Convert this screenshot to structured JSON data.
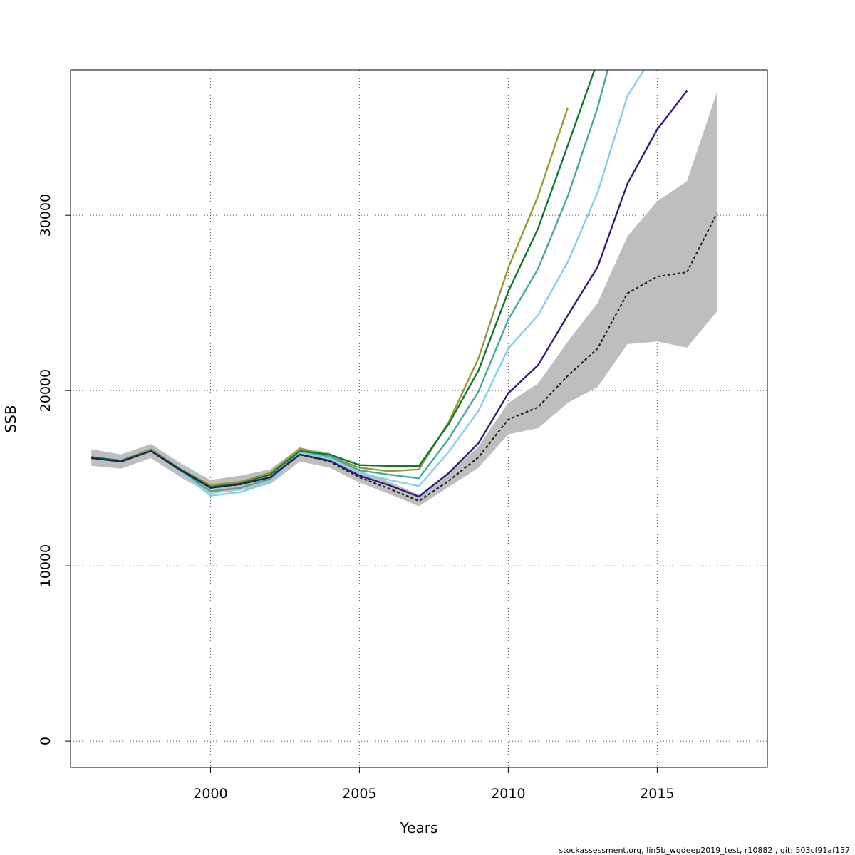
{
  "chart_data": {
    "type": "line",
    "title": "",
    "xlabel": "Years",
    "ylabel": "SSB",
    "xlim": [
      1995.3,
      2018.7
    ],
    "ylim": [
      -1500,
      38300
    ],
    "x_ticks": [
      2000,
      2005,
      2010,
      2015
    ],
    "y_ticks": [
      0,
      10000,
      20000,
      30000
    ],
    "x_tick_labels": [
      "2000",
      "2005",
      "2010",
      "2015"
    ],
    "y_tick_labels": [
      "0",
      "10000",
      "20000",
      "30000"
    ],
    "grid": true,
    "confidence_band": {
      "x": [
        1996,
        1997,
        1998,
        1999,
        2000,
        2001,
        2002,
        2003,
        2004,
        2005,
        2006,
        2007,
        2008,
        2009,
        2010,
        2011,
        2012,
        2013,
        2014,
        2015,
        2016,
        2017
      ],
      "lower": [
        15700,
        15550,
        16150,
        15050,
        14100,
        14300,
        14650,
        15950,
        15600,
        14750,
        14100,
        13400,
        14500,
        15600,
        17500,
        17850,
        19300,
        20200,
        22650,
        22800,
        22450,
        24500
      ],
      "upper": [
        16650,
        16350,
        16950,
        15850,
        14900,
        15150,
        15500,
        16750,
        16450,
        15450,
        14800,
        14050,
        15300,
        16800,
        19300,
        20400,
        22800,
        25000,
        28800,
        30800,
        31950,
        37000
      ]
    },
    "series": [
      {
        "color": "#222222",
        "dashed": true,
        "x": [
          1996,
          1997,
          1998,
          1999,
          2000,
          2001,
          2002,
          2003,
          2004,
          2005,
          2006,
          2007,
          2008,
          2009,
          2010,
          2011,
          2012,
          2013,
          2014,
          2015,
          2016,
          2017
        ],
        "values": [
          16150,
          15950,
          16550,
          15450,
          14450,
          14650,
          15050,
          16350,
          15950,
          15050,
          14400,
          13700,
          14850,
          16200,
          18350,
          19050,
          20850,
          22400,
          25550,
          26500,
          26750,
          30100
        ]
      },
      {
        "color": "#2d1f82",
        "dashed": false,
        "x": [
          1996,
          1997,
          1998,
          1999,
          2000,
          2001,
          2002,
          2003,
          2004,
          2005,
          2006,
          2007,
          2008,
          2009,
          2010,
          2011,
          2012,
          2013,
          2014,
          2015,
          2016
        ],
        "values": [
          16150,
          15950,
          16550,
          15450,
          14450,
          14650,
          15050,
          16350,
          16000,
          15150,
          14600,
          13950,
          15300,
          17000,
          19850,
          21450,
          24300,
          27050,
          31800,
          34900,
          37100
        ]
      },
      {
        "color": "#87ceeb",
        "dashed": false,
        "x": [
          1996,
          1997,
          1998,
          1999,
          2000,
          2001,
          2002,
          2003,
          2004,
          2005,
          2006,
          2007,
          2008,
          2009,
          2010,
          2011,
          2012,
          2013,
          2014,
          2015
        ],
        "values": [
          16100,
          15950,
          16550,
          15400,
          14000,
          14200,
          14750,
          16450,
          16150,
          15300,
          14900,
          14550,
          16500,
          18850,
          22400,
          24300,
          27350,
          31300,
          36800,
          39500
        ]
      },
      {
        "color": "#44aa99",
        "dashed": false,
        "x": [
          1996,
          1997,
          1998,
          1999,
          2000,
          2001,
          2002,
          2003,
          2004,
          2005,
          2006,
          2007,
          2008,
          2009,
          2010,
          2011,
          2012,
          2013,
          2014
        ],
        "values": [
          16150,
          15950,
          16600,
          15400,
          14250,
          14450,
          14950,
          16450,
          16250,
          15450,
          15200,
          15000,
          17250,
          19950,
          24050,
          26950,
          31100,
          36150,
          42500
        ]
      },
      {
        "color": "#117733",
        "dashed": false,
        "x": [
          1996,
          1997,
          1998,
          1999,
          2000,
          2001,
          2002,
          2003,
          2004,
          2005,
          2006,
          2007,
          2008,
          2009,
          2010,
          2011,
          2012,
          2013
        ],
        "values": [
          16200,
          16000,
          16600,
          15500,
          14500,
          14700,
          15200,
          16550,
          16350,
          15750,
          15700,
          15700,
          18100,
          21150,
          25650,
          29250,
          34000,
          38800
        ]
      },
      {
        "color": "#999933",
        "dashed": false,
        "x": [
          1996,
          1997,
          1998,
          1999,
          2000,
          2001,
          2002,
          2003,
          2004,
          2005,
          2006,
          2007,
          2008,
          2009,
          2010,
          2011,
          2012
        ],
        "values": [
          16150,
          16000,
          16650,
          15500,
          14600,
          14800,
          15300,
          16700,
          16250,
          15600,
          15400,
          15500,
          18200,
          21850,
          27000,
          31100,
          36150
        ]
      }
    ]
  },
  "footer_text": "stockassessment.org, lin5b_wgdeep2019_test, r10882 , git: 503cf91af157"
}
